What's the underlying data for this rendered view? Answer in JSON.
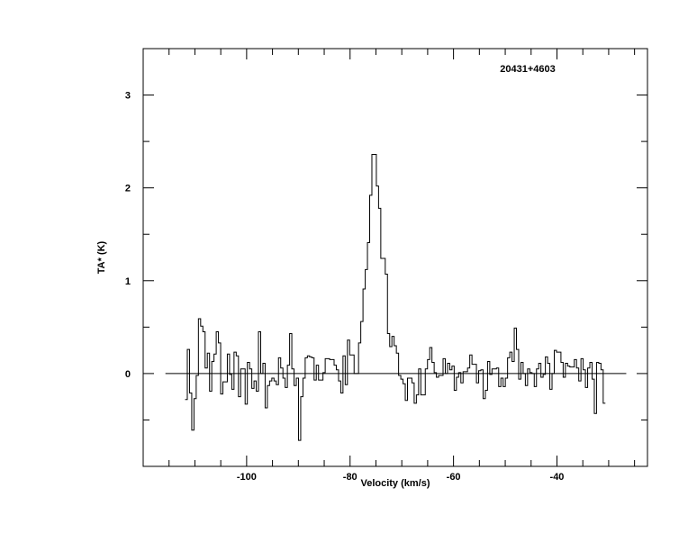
{
  "chart_data": {
    "type": "line",
    "style": "step-histogram",
    "title": "20431+4603",
    "xlabel": "Velocity (km/s)",
    "ylabel": "TA* (K)",
    "xlim": [
      -120,
      -22.5
    ],
    "ylim": [
      -1,
      3.5
    ],
    "x_major_ticks": [
      -100,
      -80,
      -60,
      -40
    ],
    "x_tick_labels": [
      "-100",
      "-80",
      "-60",
      "-40"
    ],
    "x_minor_step": 5,
    "y_major_ticks": [
      0,
      1,
      2,
      3
    ],
    "y_tick_labels": [
      "0",
      "1",
      "2",
      "3"
    ],
    "y_minor_step": 0.5,
    "grid": false,
    "baseline": {
      "y": 0,
      "x_range": [
        -115.7,
        -26.6
      ]
    },
    "line_color": "#000000",
    "channel_start_velocity": -111.9,
    "channel_width": 0.43,
    "values": [
      -0.28,
      0.26,
      -0.21,
      -0.61,
      -0.27,
      -0.02,
      0.59,
      0.51,
      0.45,
      0.06,
      0.22,
      -0.19,
      0.13,
      0.21,
      0.45,
      0.33,
      -0.22,
      -0.09,
      -0.09,
      0.21,
      -0.01,
      -0.17,
      0.23,
      0.19,
      -0.25,
      0.05,
      0.05,
      -0.33,
      0.12,
      0.05,
      -0.16,
      -0.08,
      -0.19,
      0.45,
      0,
      0.11,
      -0.37,
      -0.13,
      -0.08,
      -0.05,
      -0.08,
      -0.12,
      0.17,
      0.06,
      -0.05,
      -0.15,
      0.09,
      0.43,
      0.05,
      -0.13,
      -0.05,
      -0.72,
      -0.25,
      -0.05,
      0.17,
      0.19,
      0.18,
      0.17,
      -0.07,
      0.09,
      -0.07,
      -0.07,
      0.01,
      0.16,
      0.16,
      0.15,
      0.15,
      0.09,
      0.04,
      -0.08,
      -0.21,
      0.19,
      -0.12,
      0.36,
      0.2,
      0.2,
      0,
      0,
      0.33,
      0.56,
      0.91,
      1.12,
      1.41,
      1.92,
      2.36,
      2.36,
      2.02,
      1.78,
      1.24,
      1.24,
      1.07,
      0.43,
      0.29,
      0.4,
      0.3,
      0.22,
      -0.02,
      -0.06,
      -0.11,
      -0.29,
      -0.05,
      -0.05,
      -0.1,
      -0.32,
      -0.23,
      0.05,
      -0.23,
      -0.23,
      0.05,
      0.15,
      0.28,
      0.12,
      0.01,
      -0.04,
      -0.02,
      -0.02,
      0.16,
      0,
      0.11,
      0.04,
      0.08,
      -0.18,
      -0.04,
      0.01,
      -0.1,
      0.02,
      0.02,
      0.06,
      0.2,
      0.1,
      0.1,
      -0.1,
      0.03,
      0.04,
      -0.27,
      -0.18,
      0.13,
      -0.01,
      0.05,
      0.05,
      0.06,
      -0.14,
      -0.05,
      -0.14,
      -0.05,
      0.17,
      0.23,
      0.13,
      0.49,
      0.26,
      -0.06,
      0.12,
      0,
      -0.13,
      0.05,
      0.01,
      0,
      -0.14,
      0.05,
      0.11,
      -0.04,
      -0.01,
      0.18,
      0.11,
      -0.17,
      0,
      0.25,
      0.23,
      0.23,
      0.12,
      -0.04,
      0.11,
      0.08,
      0.07,
      0.07,
      0.15,
      0.06,
      -0.08,
      0.16,
      0.04,
      -0.15,
      0.06,
      0.12,
      -0.06,
      -0.43,
      0.12,
      0.11,
      0.04,
      -0.32
    ]
  }
}
